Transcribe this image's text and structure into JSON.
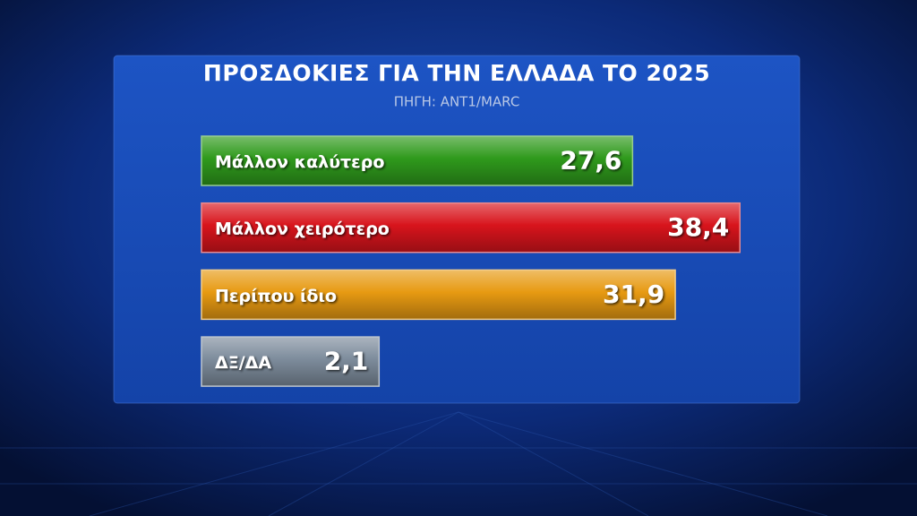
{
  "chart_data": {
    "type": "bar",
    "orientation": "horizontal",
    "title": "ΠΡΟΣΔΟΚΙΕΣ ΓΙΑ ΤΗΝ ΕΛΛΑΔΑ ΤΟ 2025",
    "subtitle": "ΠΗΓΗ: ANT1/MARC",
    "categories": [
      "Μάλλον καλύτερο",
      "Μάλλον χειρότερο",
      "Περίπου ίδιο",
      "ΔΞ/ΔΑ"
    ],
    "values": [
      27.6,
      38.4,
      31.9,
      2.1
    ],
    "value_labels": [
      "27,6",
      "38,4",
      "31,9",
      "2,1"
    ],
    "colors": [
      "#2f9a1c",
      "#d8141c",
      "#e79a12",
      "#7d8c9c"
    ]
  }
}
